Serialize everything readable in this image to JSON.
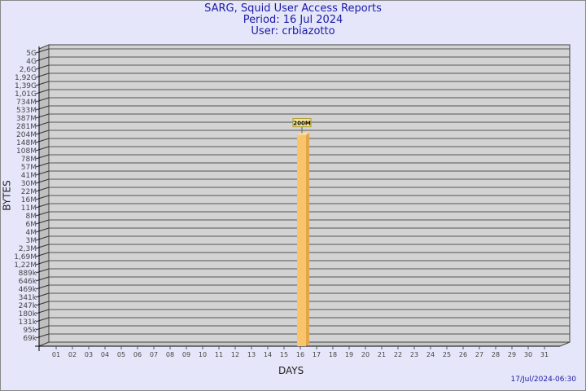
{
  "chart_data": {
    "type": "bar",
    "title": "SARG, Squid User Access Reports",
    "subtitle": [
      "Period: 16 Jul 2024",
      "User: crbiazotto"
    ],
    "xlabel": "DAYS",
    "ylabel": "BYTES",
    "yscale": "log",
    "ytick_labels": [
      "5G",
      "4G",
      "2,6G",
      "1,92G",
      "1,39G",
      "1,01G",
      "734M",
      "533M",
      "387M",
      "281M",
      "204M",
      "148M",
      "108M",
      "78M",
      "57M",
      "41M",
      "30M",
      "22M",
      "16M",
      "11M",
      "8M",
      "6M",
      "4M",
      "3M",
      "2,3M",
      "1,69M",
      "1,22M",
      "889k",
      "646k",
      "469k",
      "341k",
      "247k",
      "180k",
      "131k",
      "95k",
      "69k"
    ],
    "categories": [
      "01",
      "02",
      "03",
      "04",
      "05",
      "06",
      "07",
      "08",
      "09",
      "10",
      "11",
      "12",
      "13",
      "14",
      "15",
      "16",
      "17",
      "18",
      "19",
      "20",
      "21",
      "22",
      "23",
      "24",
      "25",
      "26",
      "27",
      "28",
      "29",
      "30",
      "31"
    ],
    "bars": [
      {
        "day": "16",
        "value_label": "200M",
        "value": 200000000
      }
    ],
    "grid": true,
    "colors": {
      "bar": "#f9c46a",
      "bar_side": "#e3a64a",
      "bar_top": "#fde0a0",
      "wall": "#d3d3d3",
      "label_bg": "#f5e9a0"
    }
  },
  "timestamp": "17/Jul/2024-06:30"
}
